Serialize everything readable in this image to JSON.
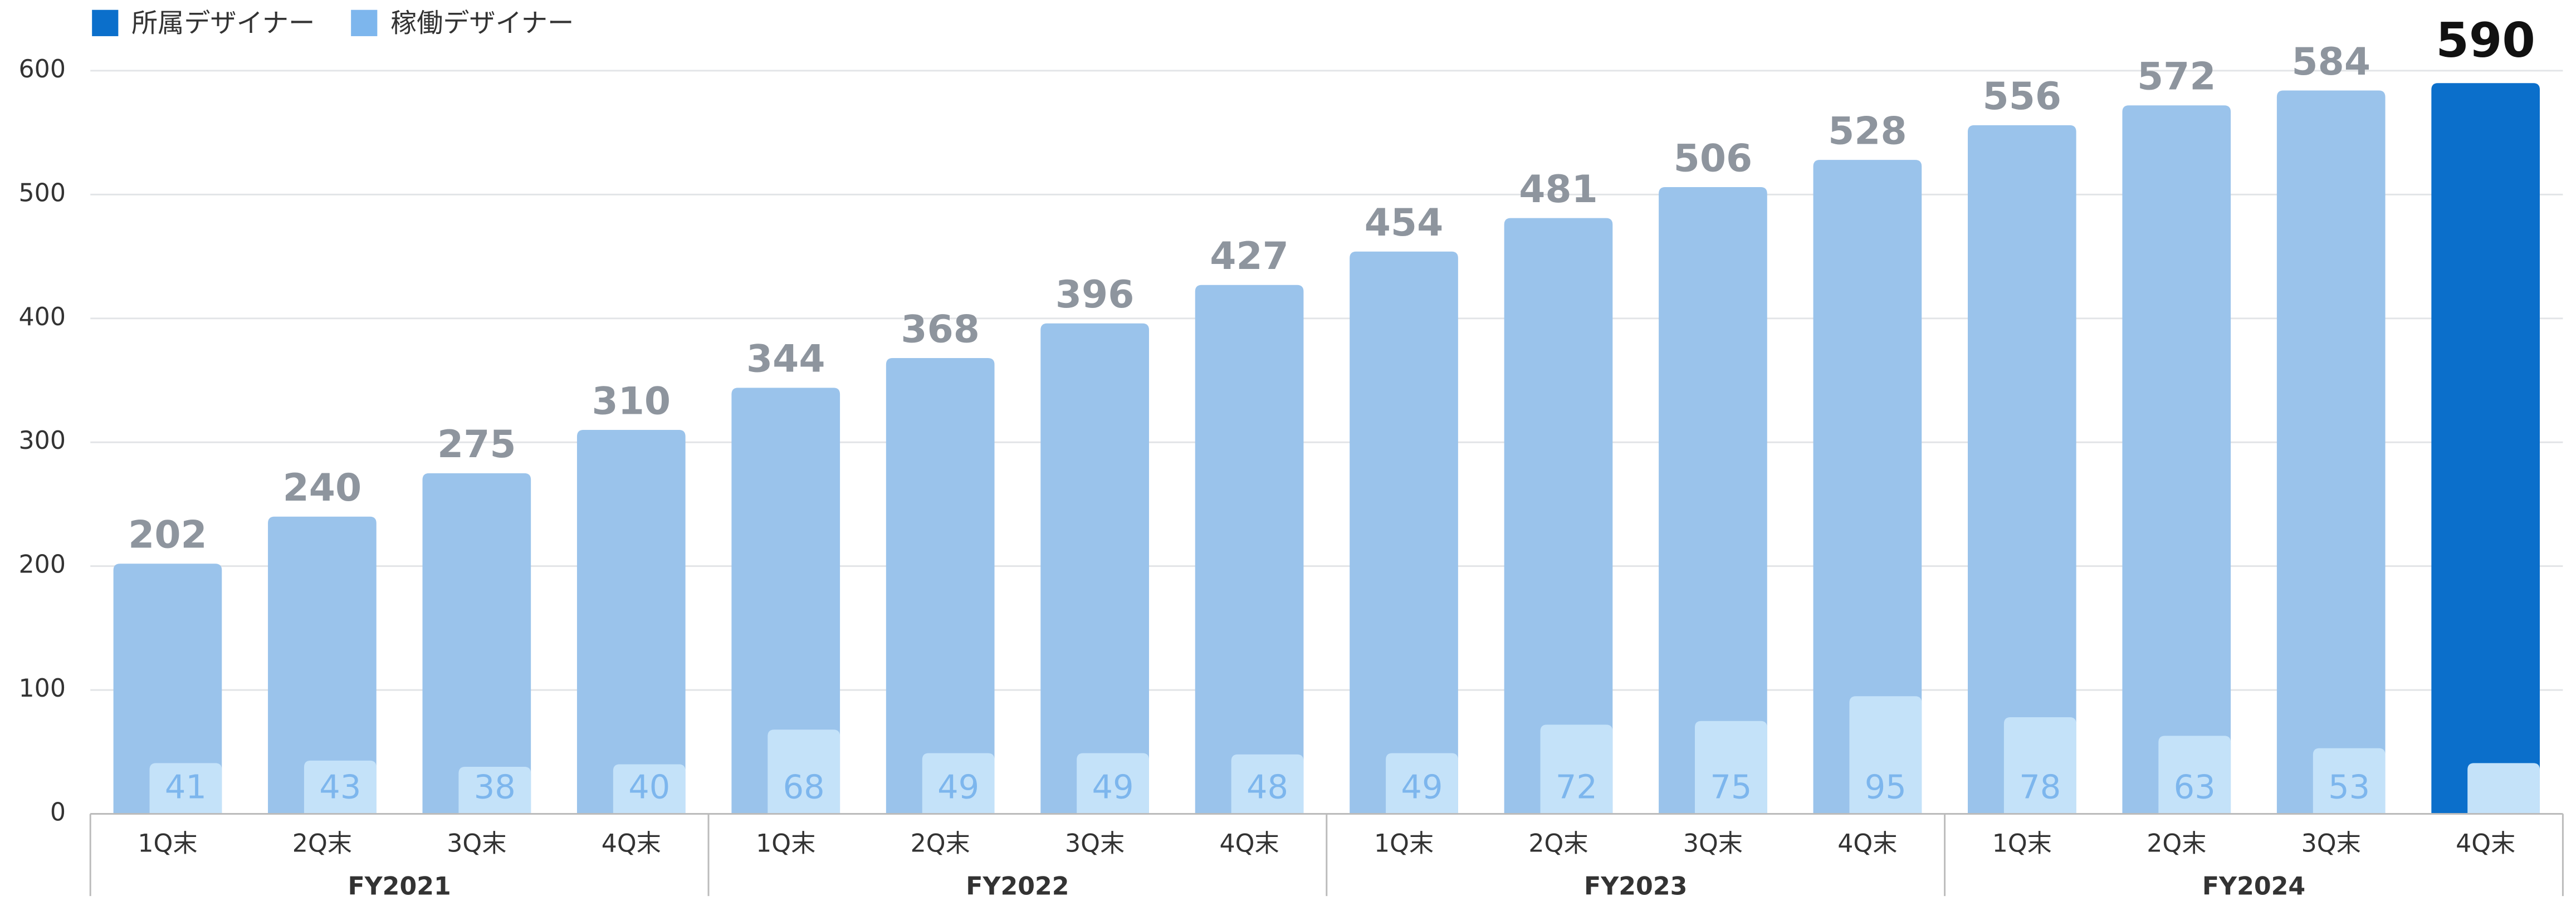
{
  "chart_data": {
    "type": "bar",
    "categories": [
      "1Q末",
      "2Q末",
      "3Q末",
      "4Q末",
      "1Q末",
      "2Q末",
      "3Q末",
      "4Q末",
      "1Q末",
      "2Q末",
      "3Q末",
      "4Q末",
      "1Q末",
      "2Q末",
      "3Q末",
      "4Q末"
    ],
    "groups": [
      {
        "label": "FY2021",
        "span": 4
      },
      {
        "label": "FY2022",
        "span": 4
      },
      {
        "label": "FY2023",
        "span": 4
      },
      {
        "label": "FY2024",
        "span": 4
      }
    ],
    "series": [
      {
        "name": "所属デザイナー",
        "color": "#0b6fcb",
        "bar_colors": [
          "#9ac3eb",
          "#9ac3eb",
          "#9ac3eb",
          "#9ac3eb",
          "#9ac3eb",
          "#9ac3eb",
          "#9ac3eb",
          "#9ac3eb",
          "#9ac3eb",
          "#9ac3eb",
          "#9ac3eb",
          "#9ac3eb",
          "#9ac3eb",
          "#9ac3eb",
          "#9ac3eb",
          "#0b6fcb"
        ],
        "values": [
          202,
          240,
          275,
          310,
          344,
          368,
          396,
          427,
          454,
          481,
          506,
          528,
          556,
          572,
          584,
          590
        ]
      },
      {
        "name": "稼働デザイナー",
        "color": "#7db6ed",
        "bar_color": "#c4e2f9",
        "values": [
          41,
          43,
          38,
          40,
          68,
          49,
          49,
          48,
          49,
          72,
          75,
          95,
          78,
          63,
          53,
          41
        ]
      }
    ],
    "ylim": [
      0,
      600
    ],
    "yticks": [
      0,
      100,
      200,
      300,
      400,
      500,
      600
    ],
    "grid": true,
    "legend": "top-left"
  }
}
